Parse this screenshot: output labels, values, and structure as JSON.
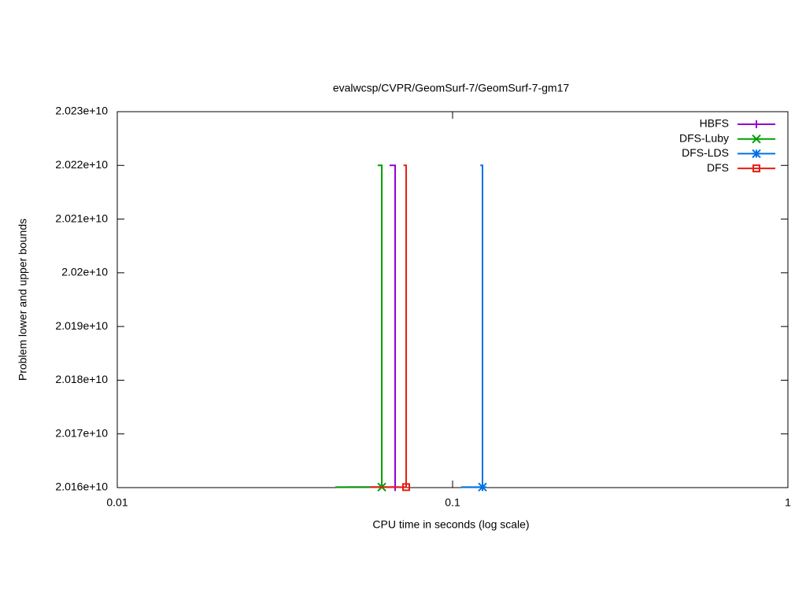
{
  "chart_data": {
    "type": "line",
    "title": "evalwcsp/CVPR/GeomSurf-7/GeomSurf-7-gm17",
    "x_label": "CPU time in seconds (log scale)",
    "y_label": "Problem lower and upper bounds",
    "xscale": "log",
    "xlim": [
      0.01,
      1
    ],
    "xticks": [
      0.01,
      0.1,
      1
    ],
    "ylim": [
      20160000000,
      20230000000
    ],
    "yticks": [
      {
        "value": 20160000000,
        "label": "2.016e+10"
      },
      {
        "value": 20170000000,
        "label": "2.017e+10"
      },
      {
        "value": 20180000000,
        "label": "2.018e+10"
      },
      {
        "value": 20190000000,
        "label": "2.019e+10"
      },
      {
        "value": 20200000000,
        "label": "2.02e+10"
      },
      {
        "value": 20210000000,
        "label": "2.021e+10"
      },
      {
        "value": 20220000000,
        "label": "2.022e+10"
      },
      {
        "value": 20230000000,
        "label": "2.023e+10"
      }
    ],
    "legend": "top-right",
    "series": [
      {
        "name": "HBFS",
        "color": "#9400d3",
        "marker": "plus",
        "x": [
          0.049,
          0.0674,
          0.0674,
          0.0649
        ],
        "values": [
          20160100000,
          20160100000,
          20220000000,
          20220000000
        ]
      },
      {
        "name": "DFS-Luby",
        "color": "#009e00",
        "marker": "cross",
        "x": [
          0.0447,
          0.0615,
          0.0615,
          0.0598
        ],
        "values": [
          20160100000,
          20160100000,
          20220000000,
          20220000000
        ]
      },
      {
        "name": "DFS-LDS",
        "color": "#0072e6",
        "marker": "star",
        "x": [
          0.106,
          0.1228,
          0.1228,
          0.121
        ],
        "values": [
          20160100000,
          20160100000,
          20220000000,
          20220000000
        ]
      },
      {
        "name": "DFS",
        "color": "#e51e10",
        "marker": "square",
        "x": [
          0.0567,
          0.0727,
          0.0727,
          0.0714
        ],
        "values": [
          20160100000,
          20160100000,
          20220000000,
          20220000000
        ]
      }
    ]
  }
}
